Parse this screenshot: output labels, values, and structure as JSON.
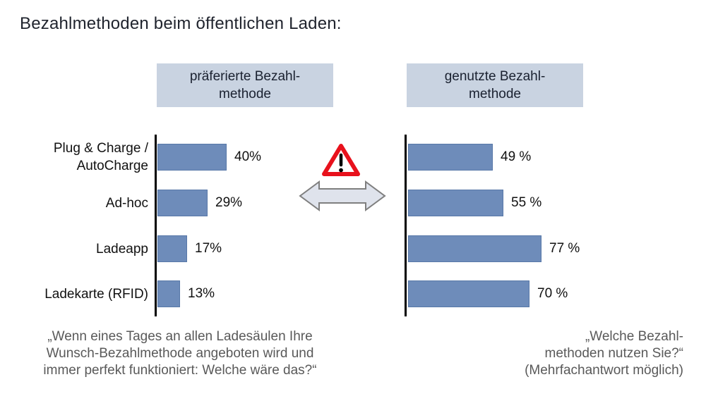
{
  "title": "Bezahlmethoden beim öffentlichen Laden:",
  "headers": {
    "preferred": {
      "line1": "präferierte Bezahl-",
      "line2": "methode"
    },
    "used": {
      "line1": "genutzte Bezahl-",
      "line2": "methode"
    }
  },
  "chart_data": {
    "type": "bar",
    "orientation": "horizontal",
    "title": "Bezahlmethoden beim öffentlichen Laden:",
    "categories": [
      "Plug & Charge / AutoCharge",
      "Ad-hoc",
      "Ladeapp",
      "Ladekarte (RFID)"
    ],
    "series": [
      {
        "name": "präferierte Bezahlmethode",
        "values": [
          40,
          29,
          17,
          13
        ],
        "value_labels": [
          "40%",
          "29%",
          "17%",
          "13%"
        ]
      },
      {
        "name": "genutzte Bezahlmethode",
        "values": [
          49,
          55,
          77,
          70
        ],
        "value_labels": [
          "49 %",
          "55 %",
          "77 %",
          "70 %"
        ]
      }
    ],
    "xlim": [
      0,
      100
    ],
    "grid": false,
    "legend_position": "none",
    "bar_color": "#6e8cba",
    "bar_border_color": "#5878a8"
  },
  "icons": {
    "warning": "warning-triangle",
    "arrow": "left-right-arrow"
  },
  "footnotes": {
    "left": {
      "line1": "„Wenn eines Tages an allen Ladesäulen Ihre",
      "line2": "Wunsch-Bezahlmethode angeboten wird und",
      "line3": "immer perfekt funktioniert: Welche wäre das?“"
    },
    "right": {
      "line1": "„Welche Bezahl-",
      "line2": "methoden nutzen Sie?“",
      "line3": "(Mehrfachantwort möglich)"
    }
  },
  "colors": {
    "bar_fill": "#6e8cba",
    "bar_border": "#5878a8",
    "header_bg": "#c9d3e1",
    "warning_red": "#e8111c",
    "arrow_fill": "#dfe3ec",
    "arrow_border": "#7f7f7f",
    "footnote_gray": "#595959"
  }
}
